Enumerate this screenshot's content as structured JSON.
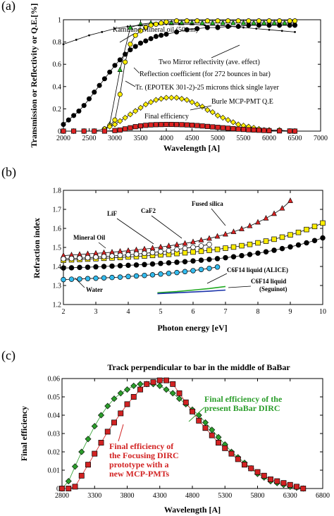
{
  "chart_data": [
    {
      "panel": "(a)",
      "type": "line",
      "title": "",
      "xlabel": "Wavelength [A]",
      "ylabel": "Transmission or Reflectivity or Q.E.[%]",
      "xlim": [
        2000,
        7000
      ],
      "ylim": [
        0,
        1
      ],
      "xticks": [
        2000,
        2500,
        3000,
        3500,
        4000,
        4500,
        5000,
        5500,
        6000,
        6500,
        7000
      ],
      "yticks": [
        0,
        0.2,
        0.4,
        0.6,
        0.8,
        1
      ],
      "annotations": [
        "KamLand Mineral oil (50 cm)",
        "Two Mirror reflectivity (ave. effect)",
        "Reflection coefficient (for 272 bounces in bar)",
        "Tr. (EPOTEK 301-2)-25 microns thick single layer",
        "Burle MCP-PMT Q.E",
        "Final efficiency"
      ],
      "series": [
        {
          "label_ref": "KamLand Mineral oil (50 cm)",
          "color": "#22bb22",
          "marker": "triangle",
          "x": [
            2900,
            3100,
            3300,
            3500,
            3700,
            3900,
            4100,
            4300,
            4500,
            4700,
            4900,
            5100,
            5300,
            5500,
            5700,
            5900,
            6100,
            6300,
            6500
          ],
          "y": [
            0.06,
            0.55,
            0.93,
            0.96,
            0.97,
            0.97,
            0.97,
            0.97,
            0.97,
            0.97,
            0.97,
            0.97,
            0.97,
            0.97,
            0.97,
            0.97,
            0.97,
            0.97,
            0.97
          ]
        },
        {
          "label_ref": "Two Mirror reflectivity (ave. effect)",
          "color": "#000000",
          "marker": "small",
          "x": [
            2000,
            2250,
            2500,
            2750,
            3000,
            3250,
            3500,
            3750,
            4000,
            4250,
            4500,
            4750,
            5000,
            5250,
            5500,
            5750,
            6000,
            6250,
            6500
          ],
          "y": [
            0.78,
            0.82,
            0.86,
            0.89,
            0.92,
            0.94,
            0.95,
            0.96,
            0.96,
            0.96,
            0.96,
            0.95,
            0.95,
            0.94,
            0.93,
            0.92,
            0.91,
            0.9,
            0.89
          ]
        },
        {
          "label_ref": "Reflection coefficient (for 272 bounces in bar)",
          "color": "#000000",
          "marker": "circle",
          "x": [
            2000,
            2100,
            2200,
            2300,
            2400,
            2500,
            2600,
            2700,
            2800,
            2900,
            3000,
            3100,
            3200,
            3300,
            3400,
            3500,
            3600,
            3700,
            3800,
            3900,
            4000,
            4200,
            4400,
            4600,
            4800,
            5000,
            5200,
            5400,
            5600,
            5800,
            6000,
            6200,
            6400,
            6500
          ],
          "y": [
            0.06,
            0.1,
            0.14,
            0.18,
            0.23,
            0.29,
            0.35,
            0.41,
            0.47,
            0.53,
            0.59,
            0.64,
            0.69,
            0.73,
            0.76,
            0.79,
            0.81,
            0.83,
            0.85,
            0.86,
            0.87,
            0.89,
            0.91,
            0.92,
            0.93,
            0.93,
            0.94,
            0.94,
            0.95,
            0.95,
            0.95,
            0.95,
            0.95,
            0.95
          ]
        },
        {
          "label_ref": "Tr. (EPOTEK 301-2)-25 microns thick single layer",
          "color": "#ffee00",
          "marker": "circle",
          "x": [
            2800,
            2900,
            3000,
            3100,
            3200,
            3300,
            3400,
            3500,
            3600,
            3700,
            3800,
            3900,
            4000,
            4200,
            4400,
            4600,
            4800,
            5000,
            5200,
            5400,
            5600,
            5800,
            6000,
            6200,
            6400,
            6500
          ],
          "y": [
            0.02,
            0.05,
            0.1,
            0.33,
            0.62,
            0.78,
            0.86,
            0.9,
            0.93,
            0.95,
            0.96,
            0.97,
            0.98,
            0.99,
            0.99,
            0.99,
            0.99,
            0.99,
            0.99,
            0.99,
            0.99,
            0.99,
            0.99,
            0.99,
            0.99,
            0.99
          ]
        },
        {
          "label_ref": "Burle MCP-PMT Q.E",
          "color": "#ffee00",
          "marker": "diamond",
          "x": [
            2000,
            2200,
            2400,
            2600,
            2800,
            2900,
            3000,
            3100,
            3200,
            3300,
            3400,
            3500,
            3600,
            3700,
            3800,
            3900,
            4000,
            4100,
            4200,
            4300,
            4400,
            4500,
            4600,
            4700,
            4800,
            4900,
            5000,
            5100,
            5200,
            5300,
            5400,
            5500,
            5600,
            5700,
            5800,
            5900,
            6000,
            6200,
            6400,
            6500
          ],
          "y": [
            0,
            0,
            0,
            0,
            0.02,
            0.04,
            0.06,
            0.09,
            0.12,
            0.15,
            0.18,
            0.21,
            0.24,
            0.26,
            0.28,
            0.29,
            0.3,
            0.3,
            0.3,
            0.29,
            0.28,
            0.26,
            0.24,
            0.22,
            0.19,
            0.17,
            0.14,
            0.12,
            0.1,
            0.08,
            0.06,
            0.05,
            0.04,
            0.03,
            0.02,
            0.01,
            0.01,
            0.01,
            0.0,
            0.0
          ]
        },
        {
          "label_ref": "Final efficiency",
          "color": "#dd2222",
          "marker": "square",
          "x": [
            2000,
            2200,
            2400,
            2600,
            2800,
            3000,
            3100,
            3200,
            3300,
            3400,
            3500,
            3600,
            3700,
            3800,
            3900,
            4000,
            4100,
            4200,
            4300,
            4400,
            4500,
            4600,
            4700,
            4800,
            4900,
            5000,
            5100,
            5200,
            5300,
            5400,
            5500,
            5600,
            5700,
            5800,
            5900,
            6000,
            6200,
            6400,
            6500
          ],
          "y": [
            0,
            0,
            0,
            0,
            0,
            0.005,
            0.01,
            0.02,
            0.03,
            0.04,
            0.047,
            0.052,
            0.056,
            0.058,
            0.059,
            0.06,
            0.06,
            0.059,
            0.058,
            0.056,
            0.053,
            0.05,
            0.046,
            0.042,
            0.038,
            0.034,
            0.03,
            0.026,
            0.022,
            0.018,
            0.015,
            0.012,
            0.01,
            0.008,
            0.006,
            0.004,
            0.002,
            0.001,
            0.0
          ]
        }
      ]
    },
    {
      "panel": "(b)",
      "type": "scatter",
      "title": "",
      "xlabel": "Photon energy [eV]",
      "ylabel": "Refraction index",
      "xlim": [
        2,
        10
      ],
      "ylim": [
        1.2,
        1.8
      ],
      "xticks": [
        2,
        3,
        4,
        5,
        6,
        7,
        8,
        9,
        10
      ],
      "yticks": [
        1.2,
        1.3,
        1.4,
        1.5,
        1.6,
        1.7,
        1.8
      ],
      "annotations": [
        "Fused silica",
        "CaF2",
        "LiF",
        "Mineral Oil",
        "Water",
        "C6F14 liquid (ALICE)",
        "C6F14 liquid",
        "(Seguinot)"
      ],
      "series": [
        {
          "label_ref": "Fused silica",
          "color": "#dd2222",
          "marker": "triangle",
          "x": [
            2,
            2.25,
            2.5,
            2.75,
            3,
            3.25,
            3.5,
            3.75,
            4,
            4.25,
            4.5,
            4.75,
            5,
            5.25,
            5.5,
            5.75,
            6,
            6.25,
            6.5,
            6.75,
            7,
            7.25,
            7.5,
            7.75,
            8,
            8.25,
            8.5,
            8.75,
            9
          ],
          "y": [
            1.457,
            1.46,
            1.463,
            1.466,
            1.469,
            1.472,
            1.475,
            1.479,
            1.483,
            1.487,
            1.491,
            1.496,
            1.502,
            1.508,
            1.514,
            1.521,
            1.529,
            1.538,
            1.547,
            1.558,
            1.569,
            1.582,
            1.597,
            1.613,
            1.632,
            1.653,
            1.677,
            1.705,
            1.745
          ]
        },
        {
          "label_ref": "CaF2",
          "color": "#ffee00",
          "marker": "square",
          "x": [
            2,
            2.25,
            2.5,
            2.75,
            3,
            3.25,
            3.5,
            3.75,
            4,
            4.25,
            4.5,
            4.75,
            5,
            5.25,
            5.5,
            5.75,
            6,
            6.25,
            6.5,
            6.75,
            7,
            7.25,
            7.5,
            7.75,
            8,
            8.25,
            8.5,
            8.75,
            9,
            9.25,
            9.5,
            9.75,
            10
          ],
          "y": [
            1.433,
            1.435,
            1.437,
            1.439,
            1.441,
            1.443,
            1.445,
            1.447,
            1.45,
            1.452,
            1.455,
            1.458,
            1.461,
            1.464,
            1.468,
            1.472,
            1.476,
            1.48,
            1.485,
            1.49,
            1.496,
            1.502,
            1.509,
            1.516,
            1.524,
            1.533,
            1.543,
            1.554,
            1.566,
            1.579,
            1.594,
            1.61,
            1.628
          ]
        },
        {
          "label_ref": "LiF",
          "color": "#000000",
          "marker": "circle",
          "x": [
            2,
            2.25,
            2.5,
            2.75,
            3,
            3.25,
            3.5,
            3.75,
            4,
            4.25,
            4.5,
            4.75,
            5,
            5.25,
            5.5,
            5.75,
            6,
            6.25,
            6.5,
            6.75,
            7,
            7.25,
            7.5,
            7.75,
            8,
            8.25,
            8.5,
            8.75,
            9,
            9.25,
            9.5,
            9.75,
            10
          ],
          "y": [
            1.392,
            1.393,
            1.395,
            1.396,
            1.398,
            1.4,
            1.402,
            1.404,
            1.406,
            1.408,
            1.41,
            1.413,
            1.416,
            1.419,
            1.422,
            1.425,
            1.429,
            1.433,
            1.437,
            1.441,
            1.446,
            1.451,
            1.457,
            1.463,
            1.47,
            1.477,
            1.485,
            1.494,
            1.503,
            1.513,
            1.524,
            1.536,
            1.55
          ]
        },
        {
          "label_ref": "Mineral Oil",
          "color": "#ffffff",
          "marker": "circle",
          "x": [
            2,
            2.25,
            2.5,
            2.75,
            3,
            3.25,
            3.5,
            3.75,
            4,
            4.25,
            4.5,
            4.75,
            5,
            5.25,
            5.5,
            5.75,
            6,
            6.25,
            6.5
          ],
          "y": [
            1.44,
            1.442,
            1.444,
            1.446,
            1.449,
            1.452,
            1.455,
            1.458,
            1.461,
            1.465,
            1.469,
            1.473,
            1.478,
            1.483,
            1.489,
            1.495,
            1.501,
            1.508,
            1.516
          ]
        },
        {
          "label_ref": "Water",
          "color": "#33bbee",
          "marker": "circle",
          "x": [
            2,
            2.25,
            2.5,
            2.75,
            3,
            3.25,
            3.5,
            3.75,
            4,
            4.25,
            4.5,
            4.75,
            5,
            5.25,
            5.5,
            5.75,
            6,
            6.25,
            6.5,
            6.75
          ],
          "y": [
            1.331,
            1.333,
            1.334,
            1.336,
            1.338,
            1.34,
            1.342,
            1.344,
            1.347,
            1.35,
            1.353,
            1.356,
            1.36,
            1.364,
            1.368,
            1.373,
            1.378,
            1.384,
            1.39,
            1.397
          ]
        },
        {
          "label_ref": "C6F14 liquid (ALICE)",
          "color": "#22aa22",
          "marker": "none",
          "x": [
            4.9,
            5.5,
            6,
            6.5,
            7
          ],
          "y": [
            1.262,
            1.268,
            1.276,
            1.284,
            1.295
          ]
        },
        {
          "label_ref": "C6F14 liquid (Seguinot)",
          "color": "#1a33aa",
          "marker": "none",
          "x": [
            4.9,
            5.5,
            6,
            6.5,
            7
          ],
          "y": [
            1.257,
            1.262,
            1.266,
            1.27,
            1.276
          ]
        }
      ]
    },
    {
      "panel": "(c)",
      "type": "line",
      "title": "Track perpendicular to bar in the middle of BaBar",
      "xlabel": "Wavelength [A]",
      "ylabel": "Final efficiency",
      "xlim": [
        2800,
        6800
      ],
      "ylim": [
        0,
        0.06
      ],
      "xticks": [
        2800,
        3300,
        3800,
        4300,
        4800,
        5300,
        5800,
        6300,
        6800
      ],
      "yticks": [
        0,
        0.01,
        0.02,
        0.03,
        0.04,
        0.05,
        0.06
      ],
      "annotations": [
        [
          "Final efficiency of the",
          "present BaBar DIRC"
        ],
        [
          "Final efficiency of",
          "the Focusing DIRC",
          "prototype with a",
          "new MCP-PMTs"
        ]
      ],
      "series": [
        {
          "label_ref": "Final efficiency of the present BaBar DIRC",
          "color": "#2a9d2a",
          "marker": "diamond",
          "x": [
            2800,
            2900,
            3000,
            3100,
            3200,
            3300,
            3400,
            3500,
            3600,
            3700,
            3800,
            3900,
            4000,
            4100,
            4200,
            4300,
            4400,
            4500,
            4600,
            4700,
            4800,
            4900,
            5000,
            5100,
            5200,
            5300,
            5400,
            5500,
            5600,
            5700,
            5800,
            5900,
            6000,
            6100,
            6200,
            6300,
            6400,
            6500
          ],
          "y": [
            0,
            0.004,
            0.012,
            0.02,
            0.027,
            0.034,
            0.04,
            0.045,
            0.049,
            0.052,
            0.054,
            0.056,
            0.057,
            0.057,
            0.057,
            0.056,
            0.054,
            0.052,
            0.049,
            0.046,
            0.043,
            0.04,
            0.036,
            0.032,
            0.028,
            0.024,
            0.02,
            0.017,
            0.014,
            0.011,
            0.008,
            0.006,
            0.004,
            0.003,
            0.002,
            0.001,
            0.0005,
            0.0
          ]
        },
        {
          "label_ref": "Final efficiency of the Focusing DIRC prototype with a new MCP-PMTs",
          "color": "#d22222",
          "marker": "square",
          "x": [
            2800,
            2900,
            3000,
            3100,
            3200,
            3300,
            3400,
            3500,
            3600,
            3700,
            3800,
            3900,
            4000,
            4100,
            4200,
            4300,
            4400,
            4500,
            4600,
            4700,
            4800,
            4900,
            5000,
            5100,
            5200,
            5300,
            5400,
            5500,
            5600,
            5700,
            5800,
            5900,
            6000,
            6100,
            6200,
            6300,
            6400,
            6500
          ],
          "y": [
            0,
            0,
            0.001,
            0.007,
            0.013,
            0.019,
            0.025,
            0.031,
            0.036,
            0.041,
            0.046,
            0.05,
            0.054,
            0.057,
            0.058,
            0.059,
            0.059,
            0.057,
            0.052,
            0.047,
            0.042,
            0.037,
            0.033,
            0.029,
            0.025,
            0.022,
            0.019,
            0.016,
            0.013,
            0.011,
            0.009,
            0.007,
            0.005,
            0.004,
            0.003,
            0.002,
            0.001,
            0.0
          ]
        }
      ]
    }
  ]
}
